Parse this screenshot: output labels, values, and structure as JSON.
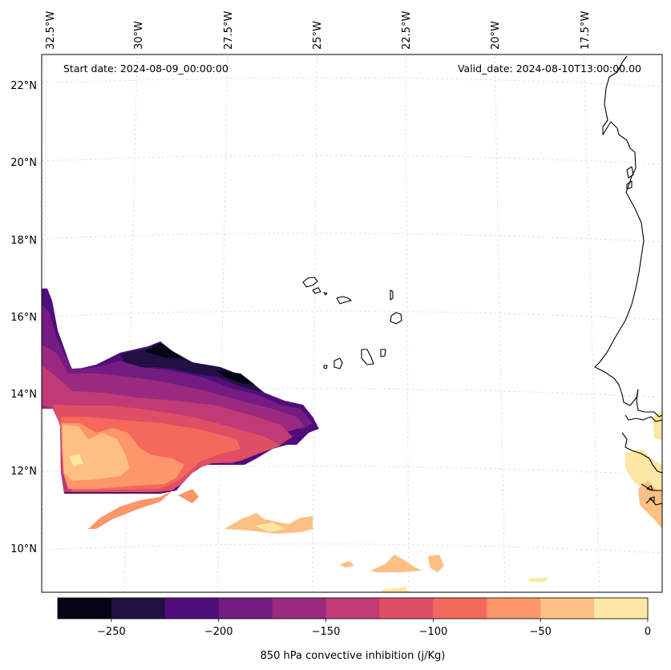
{
  "map": {
    "start_label": "Start date: 2024-08-09_00:00:00",
    "valid_label": "Valid_date: 2024-08-10T13:00:00.00",
    "lon_labels": [
      "32.5°W",
      "30°W",
      "27.5°W",
      "25°W",
      "22.5°W",
      "20°W",
      "17.5°W"
    ],
    "lat_labels": [
      "22°N",
      "20°N",
      "18°N",
      "16°N",
      "14°N",
      "12°N",
      "10°N"
    ],
    "coastline_color": "#000000",
    "gridline_color": "#d9d9d9"
  },
  "colorbar": {
    "label": "850 hPa convective inhibition (j/Kg)",
    "tick_labels": [
      "−250",
      "−200",
      "−150",
      "−100",
      "−50",
      "0"
    ],
    "levels": [
      -275,
      -250,
      -225,
      -200,
      -175,
      -150,
      -125,
      -100,
      -75,
      -50,
      -25,
      0
    ],
    "colors": [
      "#050416",
      "#211044",
      "#4f0e7a",
      "#741c81",
      "#9a2a7f",
      "#c03a76",
      "#e04e65",
      "#f4695c",
      "#fd9668",
      "#febf83",
      "#fde7a4"
    ]
  }
}
